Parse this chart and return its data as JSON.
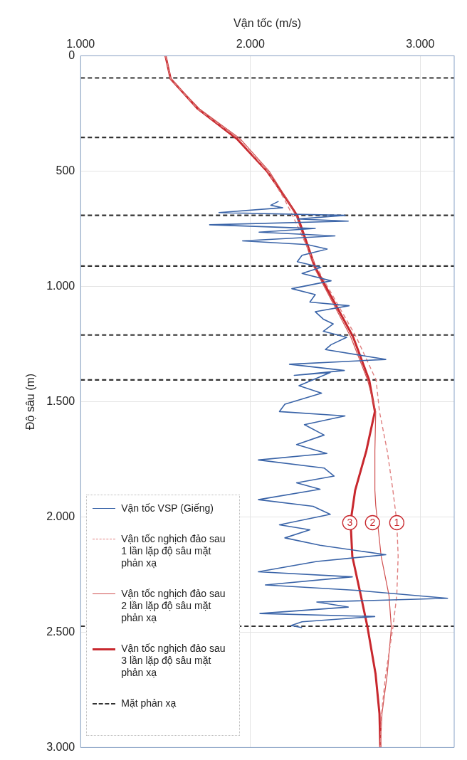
{
  "chart_data": {
    "type": "line",
    "xlabel": "Vận tốc (m/s)",
    "ylabel": "Độ sâu (m)",
    "xlim": [
      1000,
      3200
    ],
    "xticks": [
      {
        "value": 1000,
        "label": "1.000"
      },
      {
        "value": 2000,
        "label": "2.000"
      },
      {
        "value": 3000,
        "label": "3.000"
      }
    ],
    "ylim": [
      3000,
      0
    ],
    "yticks": [
      0,
      500,
      {
        "value": 1000,
        "label": "1.000"
      },
      {
        "value": 1500,
        "label": "1.500"
      },
      {
        "value": 2000,
        "label": "2.000"
      },
      {
        "value": 2500,
        "label": "2.500"
      },
      {
        "value": 3000,
        "label": "3.000"
      }
    ],
    "grid": true,
    "legend": "bottom left",
    "marker": "none",
    "series": [
      {
        "name": "Vận tốc VSP (Giếng)",
        "color": "#3a64a8",
        "line_style": "solid",
        "x": [
          2166,
          2120,
          2190,
          1815,
          2558,
          2276,
          2576,
          1760,
          2382,
          2051,
          2498,
          1954,
          2336,
          2452,
          2304,
          2276,
          2415,
          2304,
          2475,
          2244,
          2382,
          2350,
          2581,
          2382,
          2429,
          2488,
          2429,
          2567,
          2475,
          2442,
          2797,
          2230,
          2553,
          2258,
          2470,
          2286,
          2419,
          2203,
          2171,
          2557,
          2318,
          2434,
          2272,
          2450,
          2047,
          2434,
          2493,
          2272,
          2410,
          2047,
          2369,
          2470,
          2171,
          2350,
          2203,
          2410,
          2797,
          2391,
          2047,
          2600,
          2088,
          2618,
          3161,
          2391,
          2576,
          2056,
          2732,
          2304,
          2240,
          2304
        ],
        "values": [
          631,
          648,
          659,
          680,
          692,
          708,
          717,
          733,
          749,
          765,
          781,
          803,
          819,
          838,
          865,
          893,
          918,
          944,
          976,
          1010,
          1036,
          1068,
          1084,
          1110,
          1142,
          1163,
          1195,
          1221,
          1253,
          1274,
          1317,
          1338,
          1365,
          1386,
          1374,
          1431,
          1463,
          1511,
          1543,
          1562,
          1600,
          1645,
          1686,
          1725,
          1753,
          1788,
          1823,
          1852,
          1880,
          1925,
          1954,
          1989,
          2034,
          2056,
          2091,
          2123,
          2164,
          2193,
          2238,
          2260,
          2295,
          2318,
          2353,
          2369,
          2391,
          2419,
          2432,
          2455,
          2471,
          2480
        ]
      },
      {
        "name": "Vận tốc nghịch đảo sau 1 lần lặp độ sâu mặt phản xạ",
        "color": "#e08080",
        "line_style": "dashed",
        "x": [
          1500,
          1530,
          1690,
          1930,
          2100,
          2200,
          2250,
          2390,
          2622,
          2740,
          2760,
          2806,
          2839,
          2862,
          2870,
          2862,
          2839,
          2797,
          2772,
          2765
        ],
        "values": [
          0,
          100,
          230,
          360,
          500,
          622,
          695,
          918,
          1218,
          1406,
          1543,
          1715,
          1884,
          2021,
          2171,
          2340,
          2480,
          2681,
          2853,
          3000
        ]
      },
      {
        "name": "Vận tốc nghịch đảo sau 2 lần lặp độ sâu mặt phản xạ",
        "color": "#d05050",
        "line_style": "solid",
        "x": [
          1500,
          1530,
          1700,
          1940,
          2110,
          2215,
          2270,
          2375,
          2590,
          2690,
          2738,
          2733,
          2733,
          2738,
          2770,
          2816,
          2830,
          2806,
          2775,
          2765
        ],
        "values": [
          0,
          100,
          230,
          360,
          500,
          622,
          695,
          918,
          1218,
          1406,
          1543,
          1715,
          1884,
          1950,
          2171,
          2340,
          2480,
          2681,
          2853,
          3000
        ]
      },
      {
        "name": "Vận tốc nghịch đảo sau 3 lần lặp độ sâu mặt phản xạ",
        "color": "#c8282e",
        "line_style": "solid",
        "x": [
          1500,
          1530,
          1690,
          1920,
          2097,
          2212,
          2277,
          2382,
          2604,
          2700,
          2733,
          2682,
          2617,
          2590,
          2600,
          2650,
          2690,
          2737,
          2760,
          2765
        ],
        "values": [
          0,
          100,
          230,
          360,
          500,
          622,
          695,
          918,
          1218,
          1408,
          1543,
          1715,
          1884,
          2021,
          2171,
          2340,
          2480,
          2681,
          2853,
          3000
        ]
      }
    ],
    "ref_lines": [
      {
        "axis": "y",
        "value": 96,
        "label": "Mặt phản xạ",
        "color": "#333333",
        "line_style": "dashed"
      },
      {
        "axis": "y",
        "value": 354,
        "color": "#333333",
        "line_style": "dashed"
      },
      {
        "axis": "y",
        "value": 692,
        "color": "#333333",
        "line_style": "dashed"
      },
      {
        "axis": "y",
        "value": 912,
        "color": "#333333",
        "line_style": "dashed"
      },
      {
        "axis": "y",
        "value": 1211,
        "color": "#333333",
        "line_style": "dashed"
      },
      {
        "axis": "y",
        "value": 1406,
        "color": "#333333",
        "line_style": "dashed"
      },
      {
        "axis": "y",
        "value": 2474,
        "color": "#333333",
        "line_style": "dashed"
      }
    ],
    "annotations": [
      {
        "text": "3",
        "x": 2585,
        "y": 2025
      },
      {
        "text": "2",
        "x": 2719,
        "y": 2025
      },
      {
        "text": "1",
        "x": 2862,
        "y": 2025
      }
    ]
  }
}
